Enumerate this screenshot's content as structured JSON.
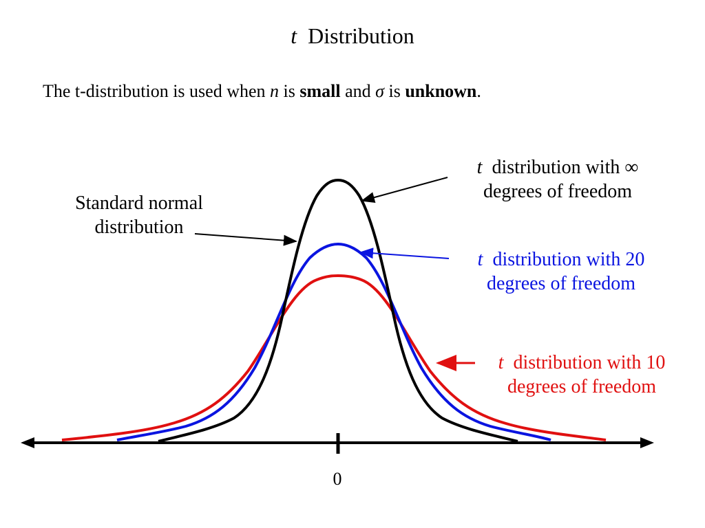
{
  "title": {
    "t": "t",
    "rest": "Distribution"
  },
  "subtitle": {
    "part1": "The t-distribution is used when ",
    "n": "n",
    "part2": " is ",
    "small": "small",
    "part3": " and ",
    "sigma": "σ",
    "part4": " is ",
    "unknown": "unknown",
    "part5": "."
  },
  "labels": {
    "normal": {
      "line1": "Standard normal",
      "line2": "distribution"
    },
    "inf": {
      "t": "t",
      "line1_rest": "distribution with ∞",
      "line2": "degrees of freedom"
    },
    "df20": {
      "t": "t",
      "line1_rest": "distribution with 20",
      "line2": "degrees of freedom"
    },
    "df10": {
      "t": "t",
      "line1_rest": "distribution with 10",
      "line2": "degrees of freedom"
    }
  },
  "axis": {
    "zero_label": "0"
  },
  "colors": {
    "normal_curve": "#000000",
    "df20_curve": "#0a14e0",
    "df10_curve": "#e01010",
    "axis": "#000000"
  }
}
